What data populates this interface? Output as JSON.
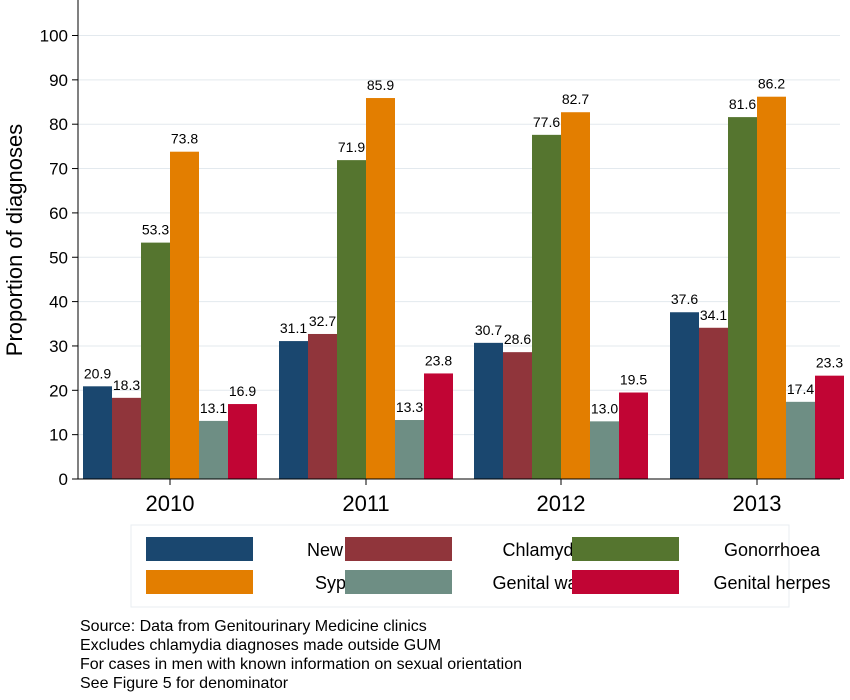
{
  "chart_data": {
    "type": "bar",
    "ylabel": "Proportion of diagnoses",
    "xlabel": "",
    "ylim": [
      0,
      100
    ],
    "yticks": [
      0,
      10,
      20,
      30,
      40,
      50,
      60,
      70,
      80,
      90,
      100
    ],
    "grid": true,
    "legend_position": "bottom",
    "categories": [
      "2010",
      "2011",
      "2012",
      "2013"
    ],
    "series": [
      {
        "name": "New STIs",
        "color": "#1a476f",
        "values": [
          20.9,
          31.1,
          30.7,
          37.6
        ],
        "labels": [
          "20.9",
          "31.1",
          "30.7",
          "37.6"
        ]
      },
      {
        "name": "Chlamydia",
        "color": "#90353b",
        "values": [
          18.3,
          32.7,
          28.6,
          34.1
        ],
        "labels": [
          "18.3",
          "32.7",
          "28.6",
          "34.1"
        ]
      },
      {
        "name": "Gonorrhoea",
        "color": "#55752f",
        "values": [
          53.3,
          71.9,
          77.6,
          81.6
        ],
        "labels": [
          "53.3",
          "71.9",
          "77.6",
          "81.6"
        ]
      },
      {
        "name": "Syphilis",
        "color": "#e37e00",
        "values": [
          73.8,
          85.9,
          82.7,
          86.2
        ],
        "labels": [
          "73.8",
          "85.9",
          "82.7",
          "86.2"
        ]
      },
      {
        "name": "Genital warts",
        "color": "#6e8e84",
        "values": [
          13.1,
          13.3,
          13.0,
          17.4
        ],
        "labels": [
          "13.1",
          "13.3",
          "13.0",
          "17.4"
        ]
      },
      {
        "name": "Genital herpes",
        "color": "#c10534",
        "values": [
          16.9,
          23.8,
          19.5,
          23.3
        ],
        "labels": [
          "16.9",
          "23.8",
          "19.5",
          "23.3"
        ]
      }
    ]
  },
  "notes": [
    "Source: Data from Genitourinary Medicine clinics",
    "Excludes chlamydia diagnoses made outside GUM",
    "For cases in men with known information on sexual orientation",
    "See Figure 5 for denominator"
  ]
}
